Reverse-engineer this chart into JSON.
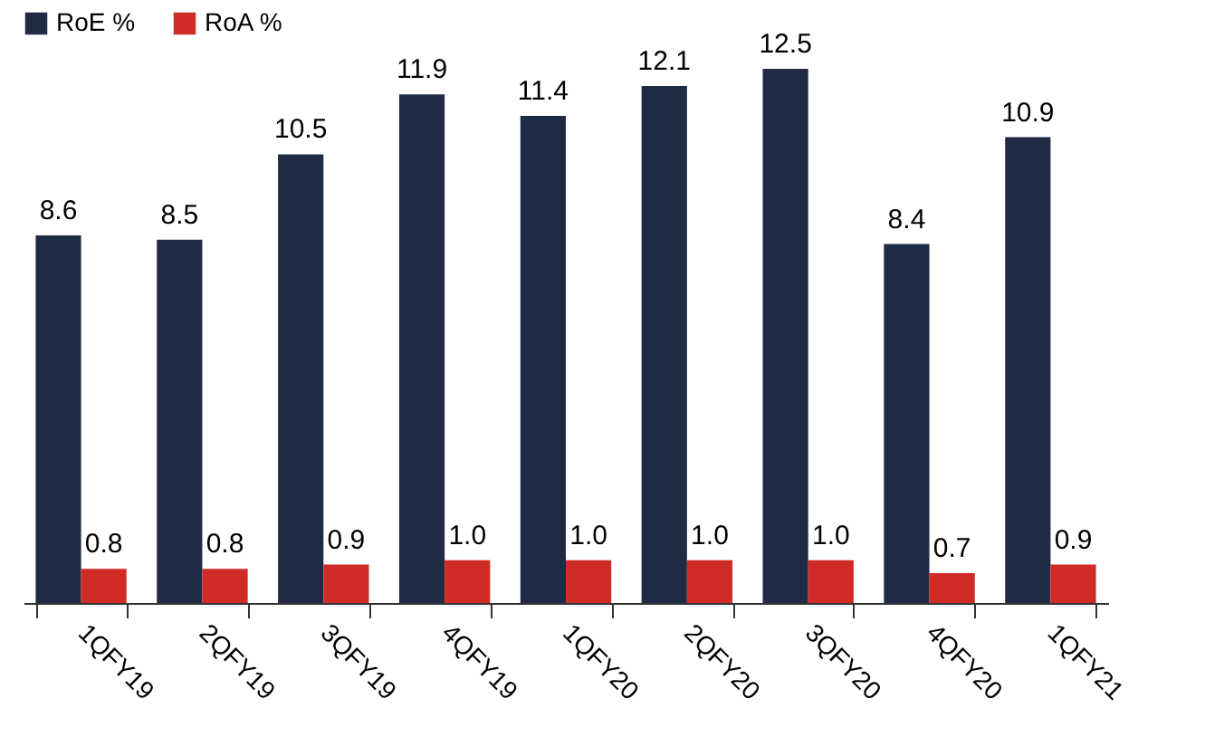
{
  "chart_data": {
    "type": "bar",
    "categories": [
      "1QFY19",
      "2QFY19",
      "3QFY19",
      "4QFY19",
      "1QFY20",
      "2QFY20",
      "3QFY20",
      "4QFY20",
      "1QFY21"
    ],
    "series": [
      {
        "name": "RoE %",
        "color": "#1f2a44",
        "values": [
          8.6,
          8.5,
          10.5,
          11.9,
          11.4,
          12.1,
          12.5,
          8.4,
          10.9
        ],
        "value_labels": [
          "8.6",
          "8.5",
          "10.5",
          "11.9",
          "11.4",
          "12.1",
          "12.5",
          "8.4",
          "10.9"
        ]
      },
      {
        "name": "RoA %",
        "color": "#d12b27",
        "values": [
          0.8,
          0.8,
          0.9,
          1.0,
          1.0,
          1.0,
          1.0,
          0.7,
          0.9
        ],
        "value_labels": [
          "0.8",
          "0.8",
          "0.9",
          "1.0",
          "1.0",
          "1.0",
          "1.0",
          "0.7",
          "0.9"
        ]
      }
    ],
    "legend": "top",
    "tick_labels": "x"
  }
}
